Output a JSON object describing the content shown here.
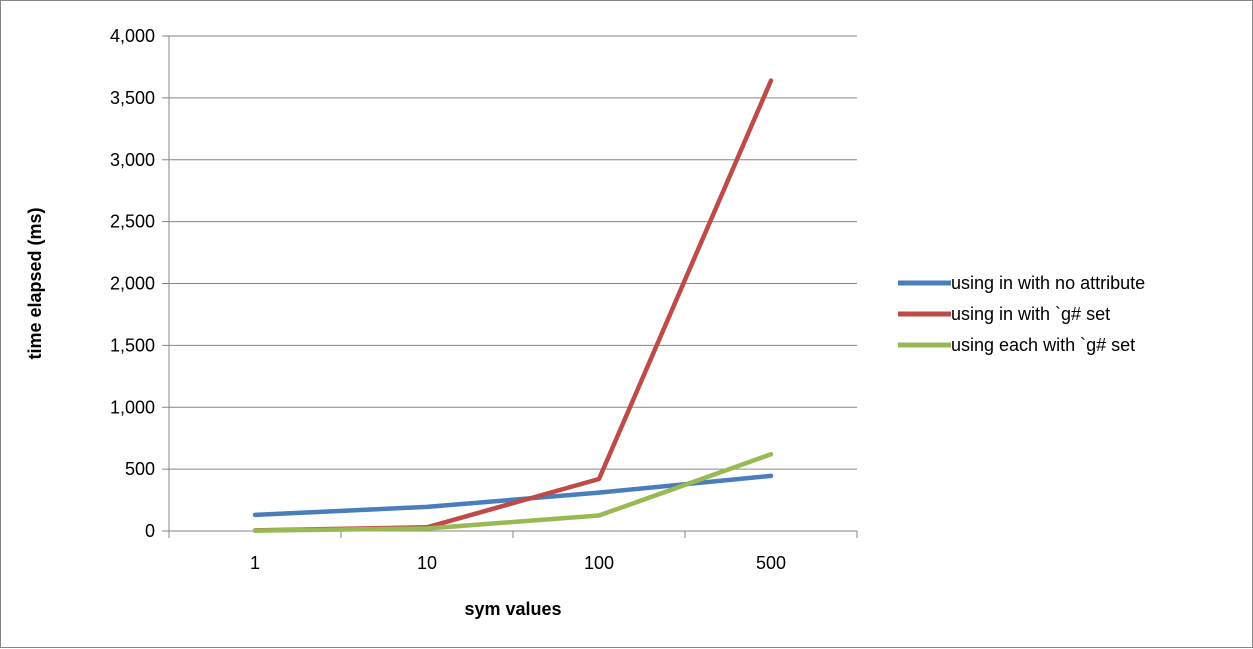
{
  "chart_data": {
    "type": "line",
    "title": "",
    "xlabel": "sym values",
    "ylabel": "time elapsed (ms)",
    "categories": [
      "1",
      "10",
      "100",
      "500"
    ],
    "ylim": [
      0,
      4000
    ],
    "yticks": [
      0,
      500,
      1000,
      1500,
      2000,
      2500,
      3000,
      3500,
      4000
    ],
    "ytick_labels": [
      "0",
      "500",
      "1,000",
      "1,500",
      "2,000",
      "2,500",
      "3,000",
      "3,500",
      "4,000"
    ],
    "grid": "horizontal",
    "legend_position": "right",
    "series": [
      {
        "name": "using in with no attribute",
        "color": "#4a7ebb",
        "values": [
          130,
          195,
          310,
          445
        ]
      },
      {
        "name": "using in with `g# set",
        "color": "#be4b48",
        "values": [
          5,
          30,
          420,
          3640
        ]
      },
      {
        "name": "using each with `g# set",
        "color": "#98b954",
        "values": [
          3,
          20,
          125,
          620
        ]
      }
    ]
  }
}
